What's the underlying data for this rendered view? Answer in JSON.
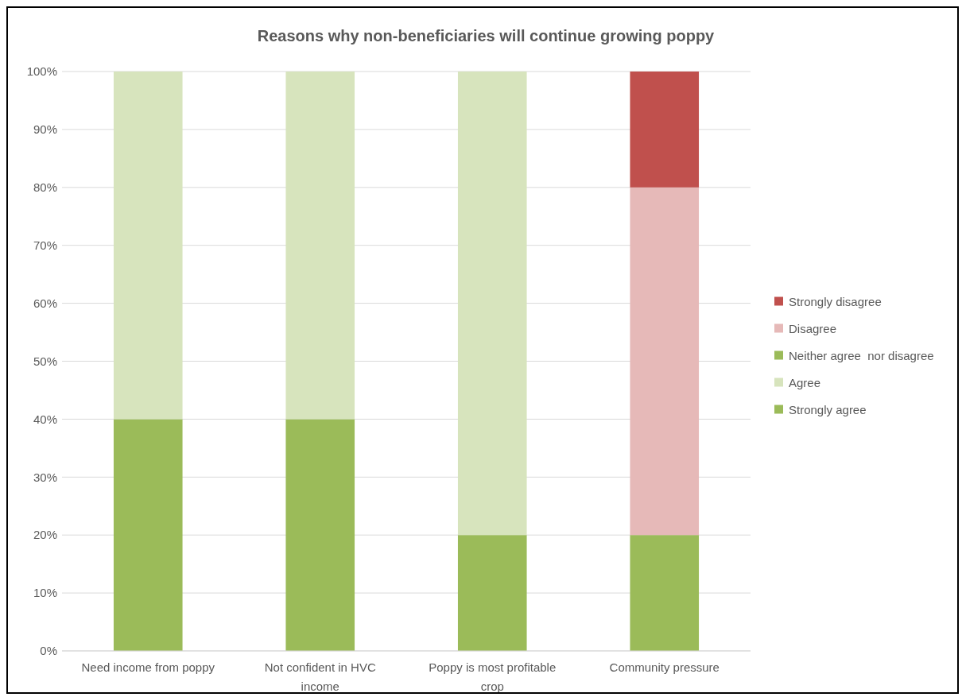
{
  "chart_data": {
    "type": "bar",
    "title": "Reasons why non-beneficiaries will continue growing poppy",
    "categories": [
      "Need income from poppy",
      "Not confident in HVC income",
      "Poppy is most profitable crop",
      "Community pressure"
    ],
    "stacked": true,
    "series": [
      {
        "name": "Strongly agree",
        "color": "#9bbb59",
        "values": [
          40,
          40,
          20,
          20
        ]
      },
      {
        "name": "Agree",
        "color": "#d7e4bd",
        "values": [
          60,
          60,
          80,
          0
        ]
      },
      {
        "name": "Neither agree  nor disagree",
        "color": "#9bbb59",
        "values": [
          0,
          0,
          0,
          0
        ]
      },
      {
        "name": "Disagree",
        "color": "#e6b9b8",
        "values": [
          0,
          0,
          0,
          60
        ]
      },
      {
        "name": "Strongly disagree",
        "color": "#c0504d",
        "values": [
          0,
          0,
          0,
          20
        ]
      }
    ],
    "ylim": [
      0,
      100
    ],
    "yticks": [
      {
        "value": 0,
        "label": "0%"
      },
      {
        "value": 10,
        "label": "10%"
      },
      {
        "value": 20,
        "label": "20%"
      },
      {
        "value": 30,
        "label": "30%"
      },
      {
        "value": 40,
        "label": "40%"
      },
      {
        "value": 50,
        "label": "50%"
      },
      {
        "value": 60,
        "label": "60%"
      },
      {
        "value": 70,
        "label": "70%"
      },
      {
        "value": 80,
        "label": "80%"
      },
      {
        "value": 90,
        "label": "90%"
      },
      {
        "value": 100,
        "label": "100%"
      }
    ],
    "grid": "y",
    "legend": "right"
  }
}
